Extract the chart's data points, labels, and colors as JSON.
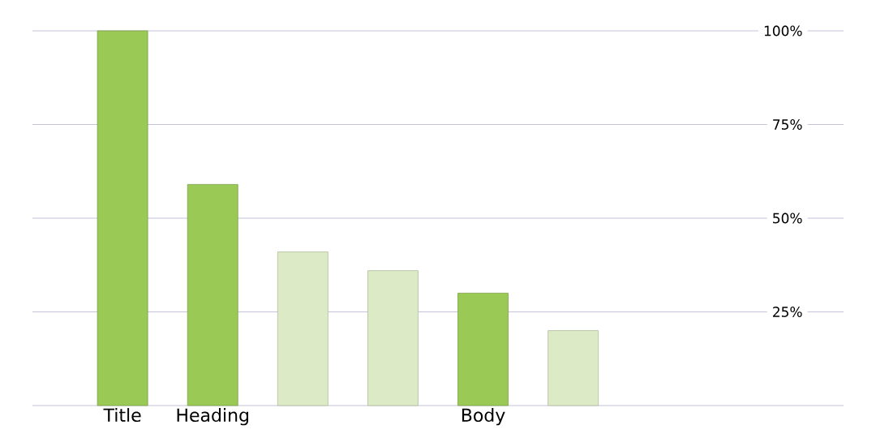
{
  "chart_data": {
    "type": "bar",
    "categories": [
      "Title",
      "Heading",
      null,
      null,
      "Body",
      null,
      null,
      null
    ],
    "values": [
      100,
      59,
      41,
      36,
      30,
      20,
      null,
      null
    ],
    "colors": [
      "#9bc955",
      "#9bc955",
      "#dcebc5",
      "#dcebc5",
      "#9bc955",
      "#dcebc5",
      null,
      null
    ],
    "ylim": [
      0,
      100
    ],
    "yticks": [
      {
        "value": 0,
        "label": null
      },
      {
        "value": 25,
        "label": "25%"
      },
      {
        "value": 50,
        "label": "50%"
      },
      {
        "value": 75,
        "label": "75%"
      },
      {
        "value": 100,
        "label": "100%"
      }
    ],
    "grid": "y"
  }
}
